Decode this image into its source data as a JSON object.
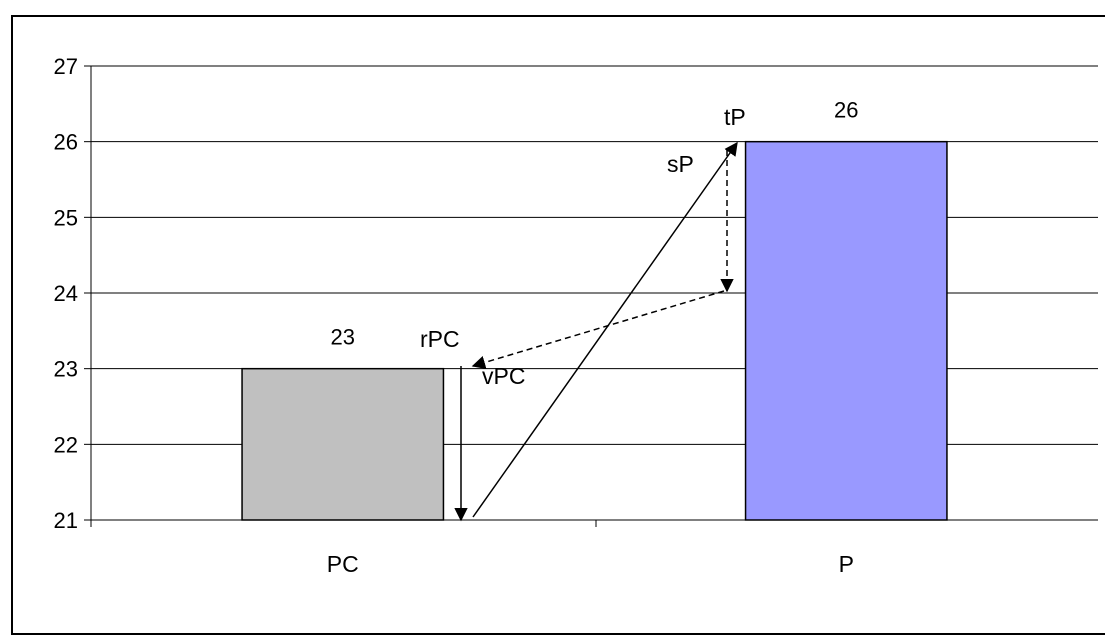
{
  "chart_data": {
    "type": "bar",
    "categories": [
      "PC",
      "P"
    ],
    "values": [
      23,
      26
    ],
    "data_labels": [
      "23",
      "26"
    ],
    "ylim": [
      21,
      27
    ],
    "yticks": [
      21,
      22,
      23,
      24,
      25,
      26,
      27
    ],
    "ytick_labels": [
      "21",
      "22",
      "23",
      "24",
      "25",
      "26",
      "27"
    ],
    "grid": true,
    "title": "",
    "xlabel": "",
    "ylabel": "",
    "bar_colors": [
      "#c0c0c0",
      "#9999ff"
    ],
    "annotations": {
      "tP": "tP",
      "sP": "sP",
      "rPC": "rPC",
      "vPC": "vPC"
    }
  }
}
